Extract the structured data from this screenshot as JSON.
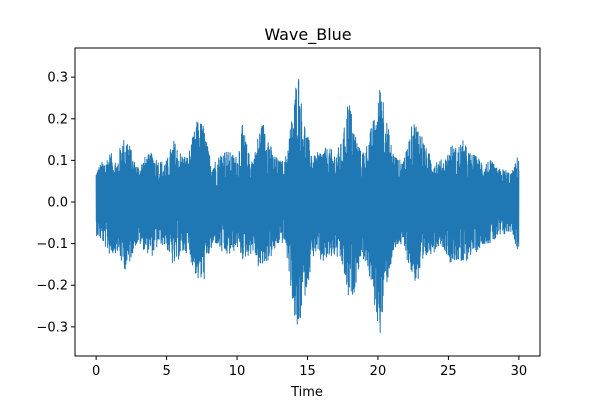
{
  "chart_data": {
    "type": "line",
    "title": "Wave_Blue",
    "xlabel": "Time",
    "ylabel": "",
    "xlim": [
      -1.5,
      31.5
    ],
    "ylim": [
      -0.37,
      0.37
    ],
    "xticks": [
      0,
      5,
      10,
      15,
      20,
      25,
      30
    ],
    "xtick_labels": [
      "0",
      "5",
      "10",
      "15",
      "20",
      "25",
      "30"
    ],
    "yticks": [
      -0.3,
      -0.2,
      -0.1,
      0.0,
      0.1,
      0.2,
      0.3
    ],
    "ytick_labels": [
      "−0.3",
      "−0.2",
      "−0.1",
      "0.0",
      "0.1",
      "0.2",
      "0.3"
    ],
    "grid": false,
    "legend": "none",
    "series": [
      {
        "color": "#1f77b4",
        "envelope": {
          "t": [
            0,
            0.5,
            1,
            1.5,
            1.8,
            2.2,
            2.7,
            3,
            3.5,
            4,
            4.5,
            5,
            5.5,
            6,
            6.5,
            6.8,
            7.2,
            7.6,
            8,
            8.5,
            9,
            9.5,
            10,
            10.4,
            10.8,
            11.2,
            11.6,
            12,
            12.5,
            13,
            13.4,
            13.8,
            14,
            14.3,
            14.6,
            15,
            15.5,
            16,
            16.5,
            17,
            17.5,
            17.9,
            18.3,
            18.8,
            19.2,
            19.6,
            20,
            20.2,
            20.5,
            21,
            21.5,
            22,
            22.5,
            23,
            23.5,
            24,
            24.4,
            24.8,
            25.2,
            25.6,
            26,
            26.5,
            27,
            27.5,
            28,
            28.5,
            29,
            29.5,
            30
          ],
          "upper": [
            0.08,
            0.1,
            0.12,
            0.1,
            0.15,
            0.16,
            0.1,
            0.09,
            0.11,
            0.12,
            0.1,
            0.1,
            0.15,
            0.12,
            0.11,
            0.15,
            0.2,
            0.19,
            0.12,
            0.1,
            0.13,
            0.12,
            0.11,
            0.19,
            0.12,
            0.11,
            0.18,
            0.2,
            0.12,
            0.1,
            0.1,
            0.19,
            0.22,
            0.34,
            0.23,
            0.16,
            0.11,
            0.13,
            0.13,
            0.12,
            0.15,
            0.26,
            0.18,
            0.12,
            0.14,
            0.19,
            0.23,
            0.32,
            0.22,
            0.13,
            0.1,
            0.12,
            0.2,
            0.18,
            0.12,
            0.11,
            0.1,
            0.11,
            0.14,
            0.13,
            0.15,
            0.12,
            0.11,
            0.1,
            0.1,
            0.08,
            0.08,
            0.07,
            0.12
          ],
          "lower": [
            -0.08,
            -0.1,
            -0.13,
            -0.12,
            -0.15,
            -0.17,
            -0.11,
            -0.1,
            -0.12,
            -0.13,
            -0.1,
            -0.11,
            -0.16,
            -0.13,
            -0.12,
            -0.15,
            -0.19,
            -0.2,
            -0.13,
            -0.1,
            -0.13,
            -0.13,
            -0.11,
            -0.14,
            -0.13,
            -0.12,
            -0.17,
            -0.15,
            -0.13,
            -0.1,
            -0.1,
            -0.2,
            -0.26,
            -0.34,
            -0.26,
            -0.2,
            -0.12,
            -0.15,
            -0.14,
            -0.13,
            -0.16,
            -0.24,
            -0.22,
            -0.13,
            -0.15,
            -0.22,
            -0.3,
            -0.32,
            -0.22,
            -0.14,
            -0.1,
            -0.13,
            -0.19,
            -0.2,
            -0.13,
            -0.12,
            -0.1,
            -0.12,
            -0.15,
            -0.14,
            -0.16,
            -0.13,
            -0.12,
            -0.1,
            -0.1,
            -0.09,
            -0.08,
            -0.07,
            -0.13
          ]
        }
      }
    ]
  }
}
